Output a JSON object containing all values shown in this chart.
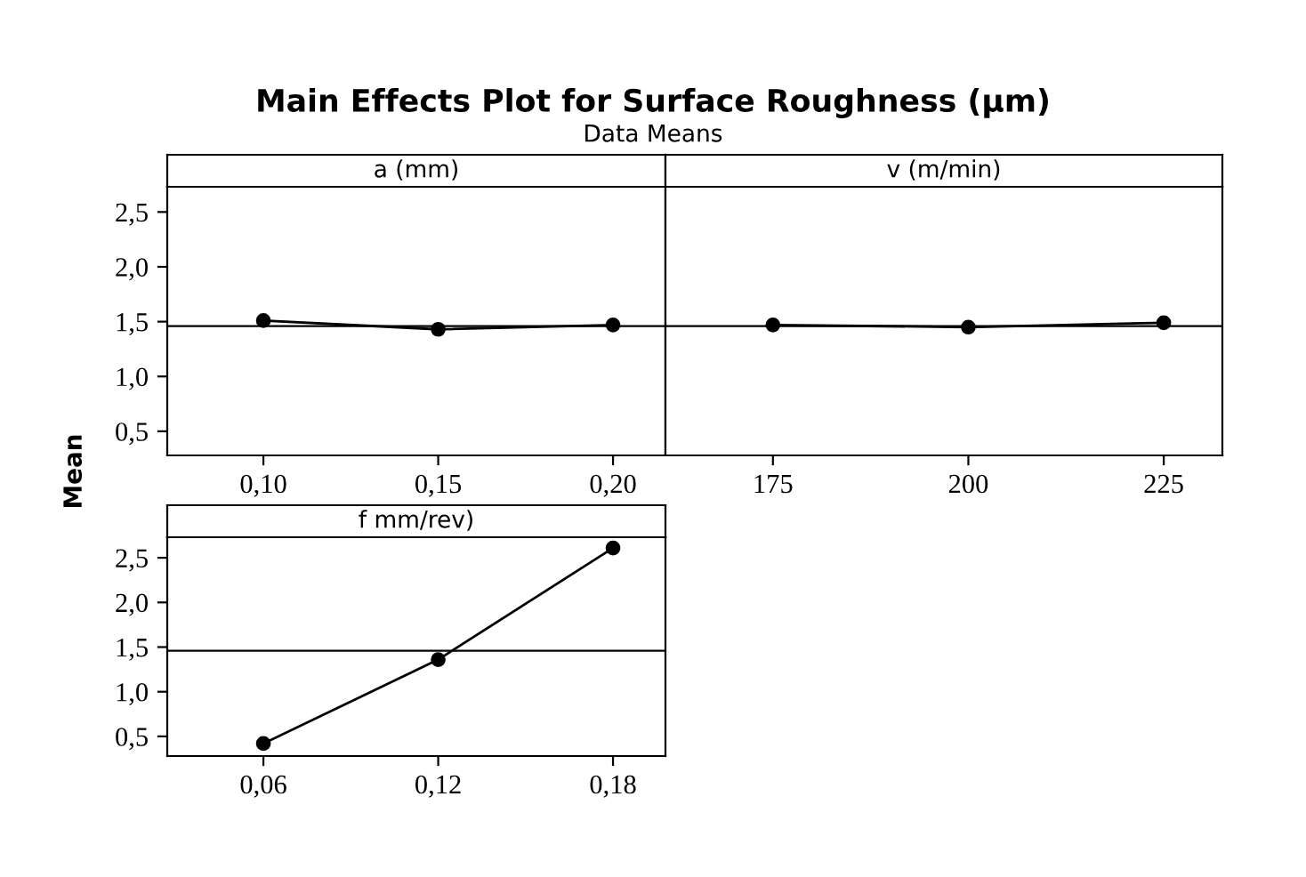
{
  "chart_data": [
    {
      "type": "line",
      "title": "a (mm)",
      "ylabel": "Mean",
      "annotations": [
        "Main Effects Plot for Surface Roughness (µm)",
        "Data Means"
      ],
      "categories": [
        "0,10",
        "0,15",
        "0,20"
      ],
      "series": [
        {
          "color": "#000000",
          "values": [
            1.51,
            1.43,
            1.47
          ]
        }
      ],
      "ylim": [
        0.28,
        2.73
      ],
      "yticks": [
        {
          "value": 0.5,
          "label": "0,5"
        },
        {
          "value": 1.0,
          "label": "1,0"
        },
        {
          "value": 1.5,
          "label": "1,5"
        },
        {
          "value": 2.0,
          "label": "2,0"
        },
        {
          "value": 2.5,
          "label": "2,5"
        }
      ],
      "ref_lines": [
        {
          "axis": "y",
          "value": 1.46,
          "color": "#000000"
        }
      ],
      "marker": "circle",
      "grid": false,
      "legend": false
    },
    {
      "type": "line",
      "title": "v (m/min)",
      "categories": [
        "175",
        "200",
        "225"
      ],
      "series": [
        {
          "color": "#000000",
          "values": [
            1.47,
            1.45,
            1.49
          ]
        }
      ],
      "ylim": [
        0.28,
        2.73
      ],
      "ref_lines": [
        {
          "axis": "y",
          "value": 1.46,
          "color": "#000000"
        }
      ],
      "marker": "circle",
      "grid": false,
      "legend": false,
      "tick_labels": "x"
    },
    {
      "type": "line",
      "title": "f mm/rev)",
      "categories": [
        "0,06",
        "0,12",
        "0,18"
      ],
      "series": [
        {
          "color": "#000000",
          "values": [
            0.42,
            1.36,
            2.61
          ]
        }
      ],
      "ylim": [
        0.28,
        2.73
      ],
      "yticks": [
        {
          "value": 0.5,
          "label": "0,5"
        },
        {
          "value": 1.0,
          "label": "1,0"
        },
        {
          "value": 1.5,
          "label": "1,5"
        },
        {
          "value": 2.0,
          "label": "2,0"
        },
        {
          "value": 2.5,
          "label": "2,5"
        }
      ],
      "ref_lines": [
        {
          "axis": "y",
          "value": 1.46,
          "color": "#000000"
        }
      ],
      "marker": "circle",
      "grid": false,
      "legend": false
    }
  ]
}
